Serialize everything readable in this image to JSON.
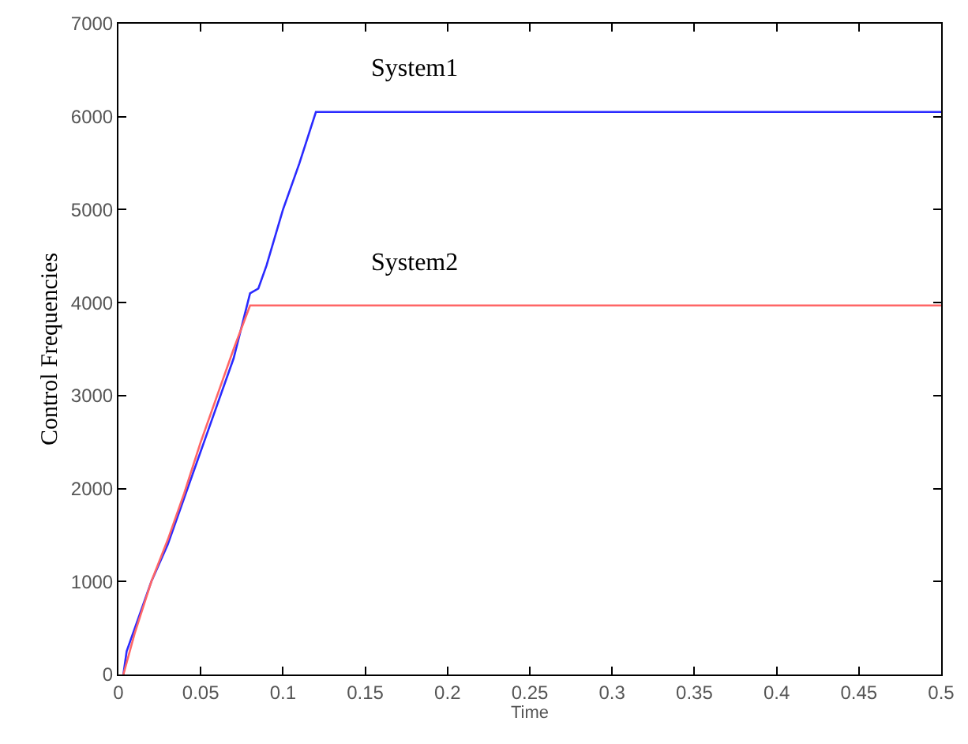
{
  "chart_data": {
    "type": "line",
    "xlabel": "Time",
    "ylabel": "Control Frequencies",
    "xlim": [
      0,
      0.5
    ],
    "ylim": [
      0,
      7000
    ],
    "xticks": [
      0,
      0.05,
      0.1,
      0.15,
      0.2,
      0.25,
      0.3,
      0.35,
      0.4,
      0.45,
      0.5
    ],
    "yticks": [
      0,
      1000,
      2000,
      3000,
      4000,
      5000,
      6000,
      7000
    ],
    "legend": false,
    "marker": "none",
    "line_style": "solid",
    "series": [
      {
        "name": "System1",
        "color": "#2a2aff",
        "x": [
          0.003,
          0.005,
          0.01,
          0.02,
          0.03,
          0.04,
          0.05,
          0.06,
          0.07,
          0.08,
          0.085,
          0.09,
          0.1,
          0.11,
          0.12,
          0.5
        ],
        "values": [
          0,
          250,
          500,
          1000,
          1400,
          1900,
          2400,
          2900,
          3400,
          4100,
          4150,
          4400,
          5000,
          5500,
          6050,
          6050
        ]
      },
      {
        "name": "System2",
        "color": "#ff6666",
        "x": [
          0.003,
          0.01,
          0.02,
          0.03,
          0.04,
          0.05,
          0.06,
          0.07,
          0.08,
          0.5
        ],
        "values": [
          0,
          450,
          1000,
          1450,
          1950,
          2500,
          3000,
          3500,
          3970,
          3970
        ]
      }
    ]
  }
}
